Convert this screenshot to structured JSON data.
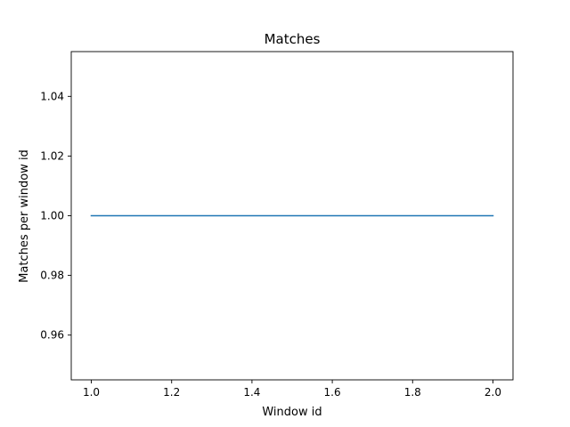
{
  "chart_data": {
    "type": "line",
    "title": "Matches",
    "xlabel": "Window id",
    "ylabel": "Matches per window id",
    "xlim": [
      0.95,
      2.05
    ],
    "ylim": [
      0.945,
      1.055
    ],
    "xticks": [
      1.0,
      1.2,
      1.4,
      1.6,
      1.8,
      2.0
    ],
    "xtick_labels": [
      "1.0",
      "1.2",
      "1.4",
      "1.6",
      "1.8",
      "2.0"
    ],
    "yticks": [
      0.96,
      0.98,
      1.0,
      1.02,
      1.04
    ],
    "ytick_labels": [
      "0.96",
      "0.98",
      "1.00",
      "1.02",
      "1.04"
    ],
    "grid": false,
    "series": [
      {
        "x": [
          1,
          2
        ],
        "y": [
          1,
          1
        ],
        "color": "#1f77b4"
      }
    ]
  }
}
